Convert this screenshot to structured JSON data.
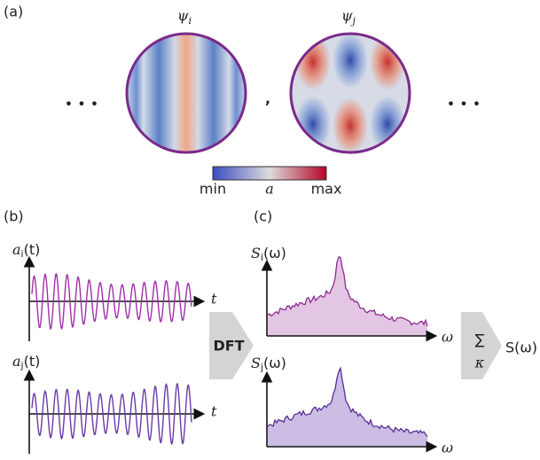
{
  "panel_a": {
    "label": "(a)",
    "mode_i": {
      "symbol": "ψ",
      "sub": "i"
    },
    "mode_j": {
      "symbol": "ψ",
      "sub": "j"
    },
    "ellipsis_left": "• • •",
    "separator": ",",
    "ellipsis_right": "• • •",
    "colorbar": {
      "min": "min",
      "name": "a",
      "max": "max"
    }
  },
  "panel_b": {
    "label": "(b)",
    "signal_i": {
      "symbol": "a",
      "sub": "i",
      "arg": "(t)"
    },
    "signal_j": {
      "symbol": "a",
      "sub": "j",
      "arg": "(t)"
    },
    "time_axis": "t"
  },
  "transform": "DFT",
  "panel_c": {
    "label": "(c)",
    "spectrum_i": {
      "symbol": "S",
      "sub": "i",
      "arg": "(ω)"
    },
    "spectrum_j": {
      "symbol": "S",
      "sub": "j",
      "arg": "(ω)"
    },
    "freq_axis": "ω"
  },
  "sum": {
    "symbol": "∑",
    "index": "κ",
    "result": "S(ω)"
  }
}
